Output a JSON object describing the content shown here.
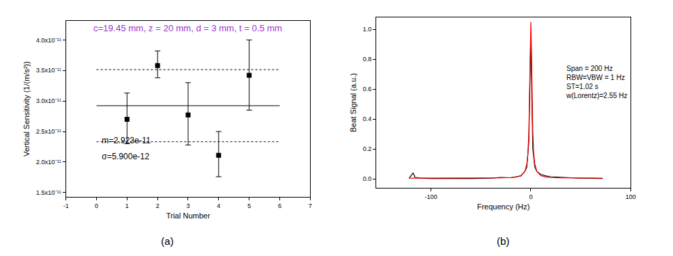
{
  "chart_data": [
    {
      "type": "scatter",
      "caption": "(a)",
      "title": "c=19.45 mm, z = 20 mm, d = 3 mm, t = 0.5 mm",
      "title_color": "#9933cc",
      "x_label": "Trial Number",
      "y_label": "Vertical Sensitivity (1/(m/s²))",
      "x": [
        1,
        2,
        3,
        4,
        5
      ],
      "values": [
        2.7e-11,
        3.58e-11,
        2.77e-11,
        2.11e-11,
        3.42e-11
      ],
      "error_top": [
        3.13e-11,
        3.82e-11,
        3.3e-11,
        2.5e-11,
        4e-11
      ],
      "error_bottom": [
        2.3e-11,
        3.38e-11,
        2.28e-11,
        1.76e-11,
        2.85e-11
      ],
      "color": "#000000",
      "marker": "square",
      "hlines": [
        {
          "y": 2.923e-11,
          "x": [
            0,
            6
          ],
          "line_style": "solid"
        },
        {
          "y": 3.513e-11,
          "x": [
            0,
            6
          ],
          "line_style": "dotted"
        },
        {
          "y": 2.333e-11,
          "x": [
            0,
            6
          ],
          "line_style": "dotted"
        }
      ],
      "annotations": [
        "m=2.923e-11",
        "σ=5.900e-12"
      ],
      "xlim": [
        -1,
        7
      ],
      "xticks": [
        -1,
        0,
        1,
        2,
        3,
        4,
        5,
        6,
        7
      ],
      "ylim": [
        1.43e-11,
        4.31e-11
      ],
      "yticks": [
        {
          "value": 1.5e-11,
          "label": "1.5x10⁻¹¹"
        },
        {
          "value": 2e-11,
          "label": "2.0x10⁻¹¹"
        },
        {
          "value": 2.5e-11,
          "label": "2.5x10⁻¹¹"
        },
        {
          "value": 3e-11,
          "label": "3.0x10⁻¹¹"
        },
        {
          "value": 3.5e-11,
          "label": "3.5x10⁻¹¹"
        },
        {
          "value": 4e-11,
          "label": "4.0x10⁻¹¹"
        }
      ],
      "grid": false
    },
    {
      "type": "line",
      "caption": "(b)",
      "x_label": "Frequency (Hz)",
      "y_label": "Beat Signal (a.u.)",
      "series": [
        {
          "color": "#000000",
          "x": [
            -122,
            -120,
            -118,
            -116,
            -110,
            -100,
            -80,
            -60,
            -40,
            -30,
            -20,
            -15,
            -10,
            -6,
            -4,
            -2,
            -1,
            0,
            1,
            2,
            4,
            6,
            10,
            15,
            20,
            30,
            40,
            50,
            60,
            72
          ],
          "values": [
            0.005,
            0.02,
            0.04,
            0.01,
            0.005,
            0.003,
            0.002,
            0.003,
            0.005,
            0.01,
            0.008,
            0.015,
            0.02,
            0.05,
            0.08,
            0.25,
            0.6,
            0.97,
            0.55,
            0.2,
            0.08,
            0.05,
            0.03,
            0.02,
            0.015,
            0.01,
            0.008,
            0.005,
            0.004,
            0.003
          ]
        },
        {
          "color": "#ff0000",
          "x": [
            -122,
            -100,
            -80,
            -60,
            -40,
            -30,
            -20,
            -15,
            -10,
            -6,
            -4,
            -3,
            -2,
            -1,
            -0.5,
            0,
            0.5,
            1,
            2,
            3,
            4,
            6,
            10,
            15,
            20,
            30,
            40,
            60,
            72
          ],
          "values": [
            0.005,
            0.005,
            0.006,
            0.006,
            0.007,
            0.007,
            0.009,
            0.012,
            0.022,
            0.05,
            0.1,
            0.16,
            0.31,
            0.65,
            0.91,
            1.05,
            0.91,
            0.65,
            0.31,
            0.16,
            0.1,
            0.05,
            0.022,
            0.012,
            0.009,
            0.007,
            0.007,
            0.006,
            0.005
          ]
        }
      ],
      "annotations": [
        "Span = 200 Hz",
        "RBW=VBW = 1 Hz",
        "ST=1.02 s",
        "w(Lorentz)=2.55 Hz"
      ],
      "xlim": [
        -155,
        100
      ],
      "xticks": [
        -100,
        0,
        100
      ],
      "ylim": [
        -0.06,
        1.08
      ],
      "yticks": [
        {
          "value": 0,
          "label": "0.0"
        },
        0.2,
        0.4,
        0.6,
        0.8,
        {
          "value": 1,
          "label": "1.0"
        }
      ],
      "grid": false
    }
  ]
}
